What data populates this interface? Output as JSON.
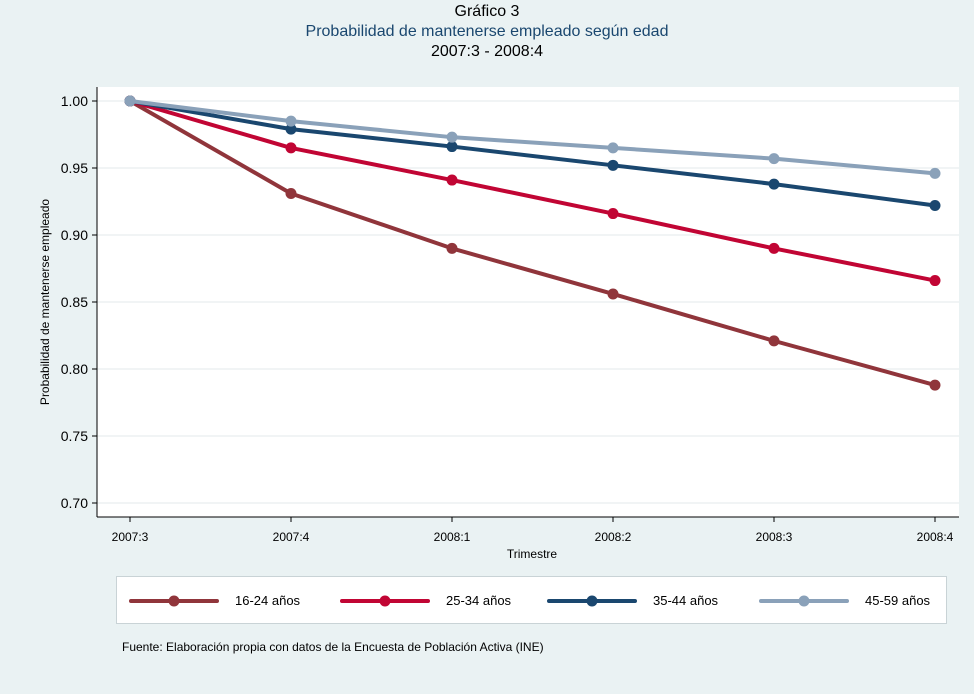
{
  "chart_data": {
    "type": "line",
    "title": "Gráfico 3",
    "subtitle": "Probabilidad de mantenerse empleado según edad",
    "period": "2007:3 - 2008:4",
    "xlabel": "Trimestre",
    "ylabel": "Probabilidad de mantenerse empleado",
    "categories": [
      "2007:3",
      "2007:4",
      "2008:1",
      "2008:2",
      "2008:3",
      "2008:4"
    ],
    "ylim": [
      0.7,
      1.0
    ],
    "yticks": [
      "0.70",
      "0.75",
      "0.80",
      "0.85",
      "0.90",
      "0.95",
      "1.00"
    ],
    "grid": true,
    "legend_position": "bottom",
    "series": [
      {
        "name": "16-24 años",
        "color": "#90353b",
        "values": [
          1.0,
          0.931,
          0.89,
          0.856,
          0.821,
          0.788
        ]
      },
      {
        "name": "25-34 años",
        "color": "#c10534",
        "values": [
          1.0,
          0.965,
          0.941,
          0.916,
          0.89,
          0.866
        ]
      },
      {
        "name": "35-44 años",
        "color": "#1a476f",
        "values": [
          1.0,
          0.979,
          0.966,
          0.952,
          0.938,
          0.922
        ]
      },
      {
        "name": "45-59 años",
        "color": "#8aa1b9",
        "values": [
          1.0,
          0.985,
          0.973,
          0.965,
          0.957,
          0.946
        ]
      }
    ],
    "source": "Fuente: Elaboración propia con datos de la Encuesta de Población Activa (INE)"
  }
}
